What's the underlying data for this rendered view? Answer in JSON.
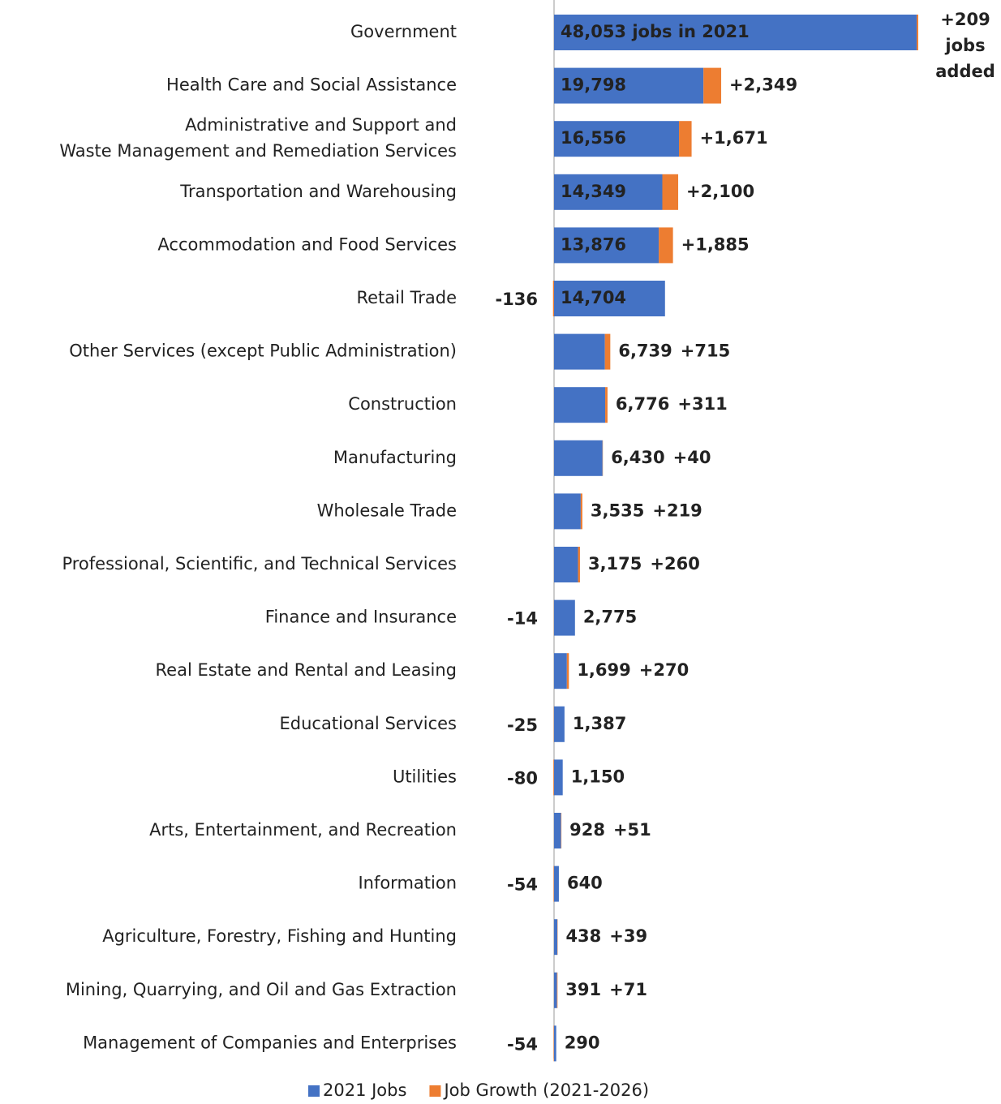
{
  "chart_data": {
    "type": "bar",
    "orientation": "horizontal",
    "stacked": true,
    "categories": [
      "Government",
      "Health Care and Social Assistance",
      "Administrative and Support and Waste Management and Remediation Services",
      "Transportation and Warehousing",
      "Accommodation and Food Services",
      "Retail Trade",
      "Other Services (except Public Administration)",
      "Construction",
      "Manufacturing",
      "Wholesale Trade",
      "Professional, Scientific, and Technical Services",
      "Finance and Insurance",
      "Real Estate and Rental and Leasing",
      "Educational Services",
      "Utilities",
      "Arts, Entertainment, and Recreation",
      "Information",
      "Agriculture, Forestry, Fishing and Hunting",
      "Mining, Quarrying, and Oil and Gas Extraction",
      "Management of Companies and Enterprises"
    ],
    "series": [
      {
        "name": "2021 Jobs",
        "color": "#4472c4",
        "values": [
          48053,
          19798,
          16556,
          14349,
          13876,
          14704,
          6739,
          6776,
          6430,
          3535,
          3175,
          2775,
          1699,
          1387,
          1150,
          928,
          640,
          438,
          391,
          290
        ],
        "value_labels": [
          "48,053 jobs in 2021",
          "19,798",
          "16,556",
          "14,349",
          "13,876",
          "14,704",
          "6,739",
          "6,776",
          "6,430",
          "3,535",
          "3,175",
          "2,775",
          "1,699",
          "1,387",
          "1,150",
          "928",
          "640",
          "438",
          "391",
          "290"
        ]
      },
      {
        "name": "Job Growth (2021-2026)",
        "color": "#ed7d31",
        "values": [
          209,
          2349,
          1671,
          2100,
          1885,
          -136,
          715,
          311,
          40,
          219,
          260,
          -14,
          270,
          -25,
          -80,
          51,
          -54,
          39,
          71,
          -54
        ],
        "value_labels": [
          "+209 jobs added",
          "+2,349",
          "+1,671",
          "+2,100",
          "+1,885",
          "-136",
          "+715",
          "+311",
          "+40",
          "+219",
          "+260",
          "-14",
          "+270",
          "-25",
          "-80",
          "+51",
          "-54",
          "+39",
          "+71",
          "-54"
        ]
      }
    ],
    "legend": "bottom"
  }
}
